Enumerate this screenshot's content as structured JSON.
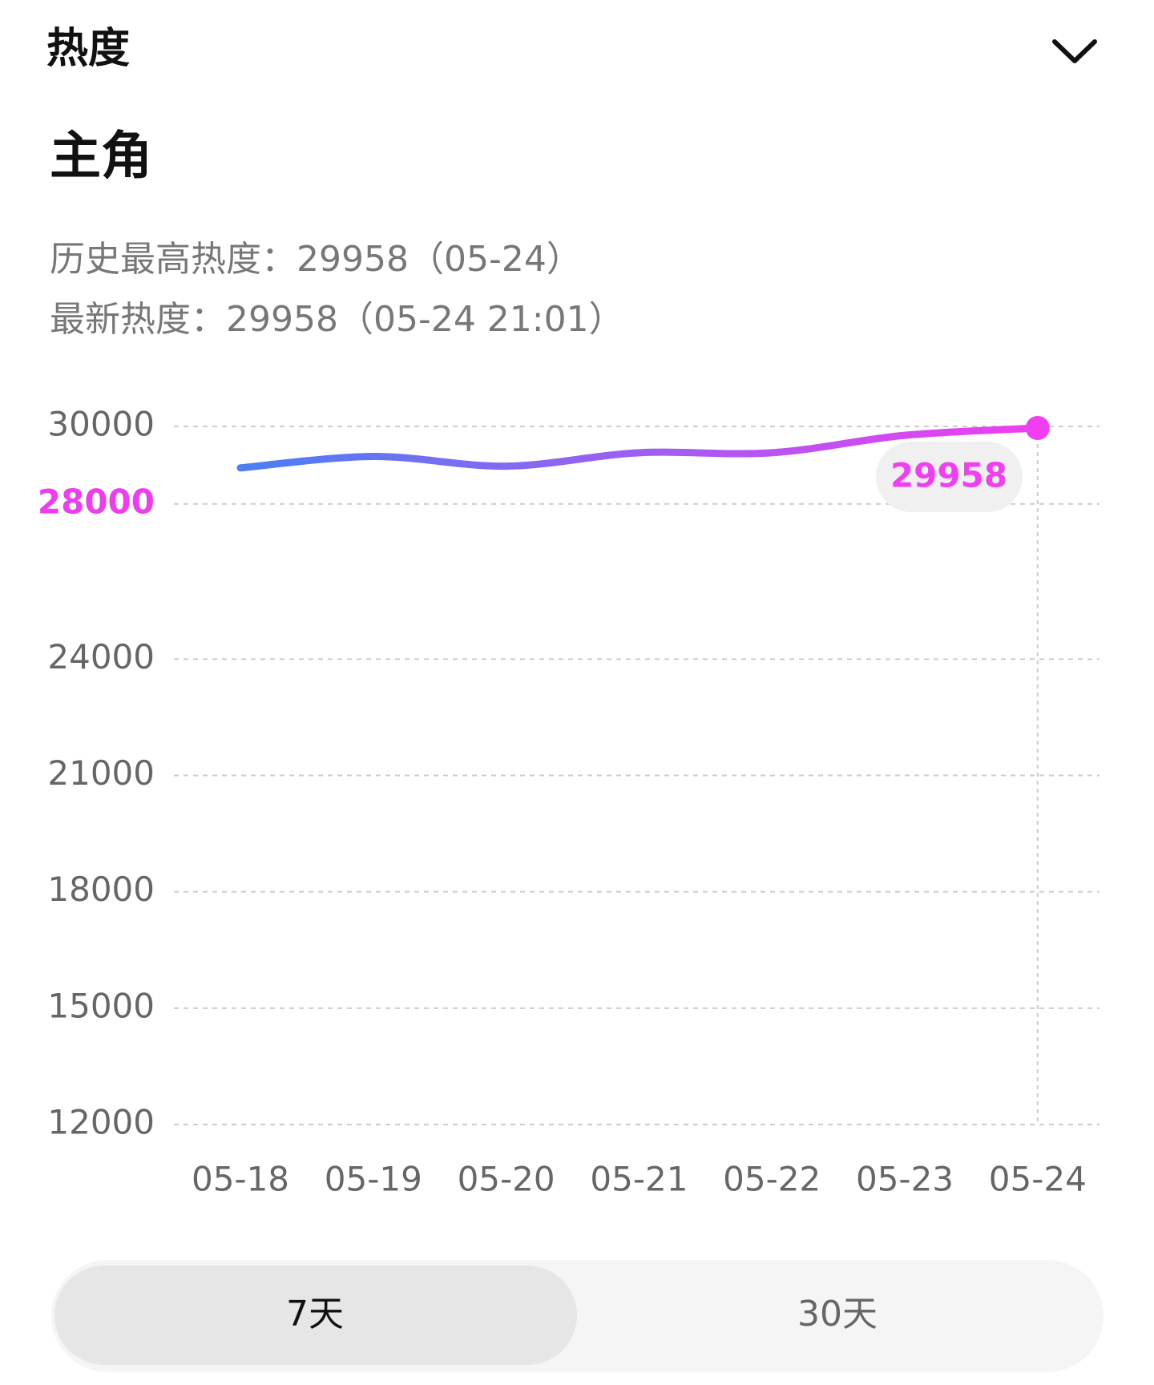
{
  "header": {
    "title": "热度",
    "subtitle": "主角"
  },
  "info_lines": [
    "历史最高热度：29958（05-24）",
    "最新热度：29958（05-24 21:01）"
  ],
  "chart_data": {
    "type": "line",
    "x": [
      "05-18",
      "05-19",
      "05-20",
      "05-21",
      "05-22",
      "05-23",
      "05-24"
    ],
    "series": [
      {
        "name": "热度",
        "gradient": [
          "#4b7ff2",
          "#f03ef0"
        ],
        "values": [
          28930,
          29225,
          28975,
          29320,
          29320,
          29770,
          29958
        ]
      }
    ],
    "ylim": [
      12000,
      30000
    ],
    "yticks": [
      12000,
      15000,
      18000,
      21000,
      24000,
      28000,
      30000
    ],
    "highlight_ytick": 28000,
    "highlight_color": "#ee3cef",
    "grid": true,
    "grid_style": "dashed"
  },
  "tabs": [
    "7天",
    "30天"
  ],
  "active_tab": 0
}
